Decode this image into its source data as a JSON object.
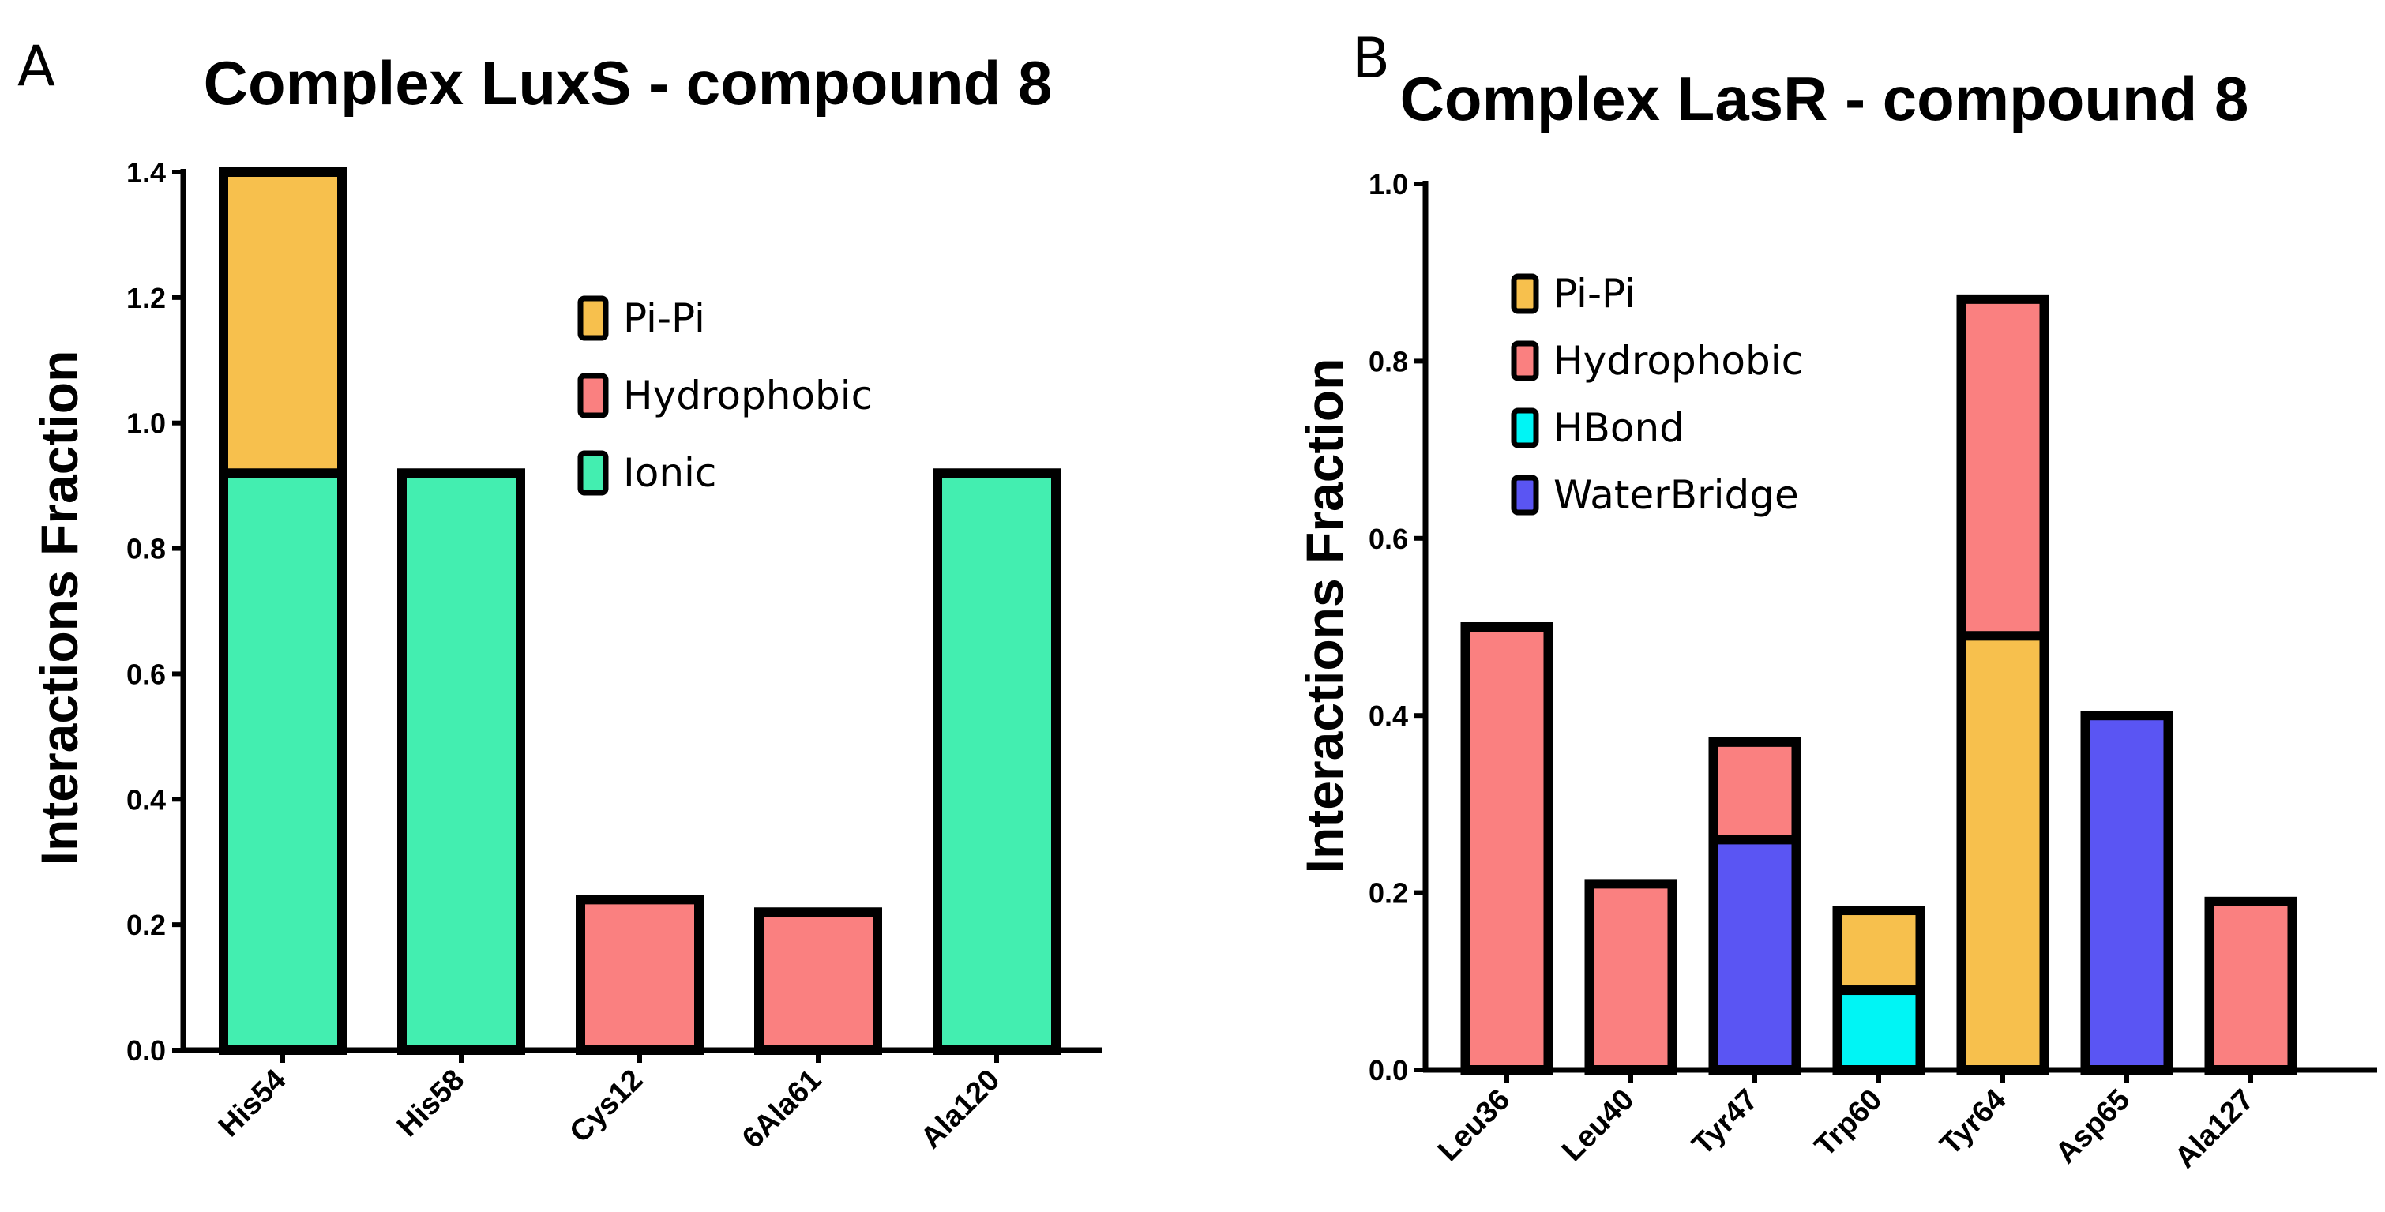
{
  "colors": {
    "Pi-Pi": "#f7c04d",
    "Hydrophobic": "#fa8080",
    "Ionic": "#43eeb0",
    "HBond": "#00f5f5",
    "WaterBridge": "#5a55f3"
  },
  "chart_data": [
    {
      "panel": "A",
      "type": "bar",
      "stacked": true,
      "title": "Complex LuxS - compound 8",
      "xlabel": "",
      "ylabel": "Interactions Fraction",
      "ylim": [
        0,
        1.4
      ],
      "yticks": [
        "0.0",
        "0.2",
        "0.4",
        "0.6",
        "0.8",
        "1.0",
        "1.2",
        "1.4"
      ],
      "categories": [
        "His54",
        "His58",
        "Cys12",
        "6Ala61",
        "Ala120"
      ],
      "legend": [
        "Pi-Pi",
        "Hydrophobic",
        "Ionic"
      ],
      "legend_position": "top-right",
      "series": [
        {
          "name": "Ionic",
          "values": [
            0.92,
            0.92,
            0,
            0,
            0.92
          ]
        },
        {
          "name": "Hydrophobic",
          "values": [
            0,
            0,
            0.24,
            0.22,
            0
          ]
        },
        {
          "name": "Pi-Pi",
          "values": [
            0.48,
            0,
            0,
            0,
            0
          ]
        }
      ]
    },
    {
      "panel": "B",
      "type": "bar",
      "stacked": true,
      "title": "Complex LasR - compound 8",
      "xlabel": "",
      "ylabel": "Interactions Fraction",
      "ylim": [
        0,
        1.0
      ],
      "yticks": [
        "0.0",
        "0.2",
        "0.4",
        "0.6",
        "0.8",
        "1.0"
      ],
      "categories": [
        "Leu36",
        "Leu40",
        "Tyr47",
        "Trp60",
        "Tyr64",
        "Asp65",
        "Ala127"
      ],
      "legend": [
        "Pi-Pi",
        "Hydrophobic",
        "HBond",
        "WaterBridge"
      ],
      "legend_position": "top-left",
      "series": [
        {
          "name": "HBond",
          "values": [
            0,
            0,
            0,
            0.09,
            0,
            0,
            0
          ]
        },
        {
          "name": "WaterBridge",
          "values": [
            0,
            0,
            0.26,
            0,
            0,
            0.4,
            0
          ]
        },
        {
          "name": "Pi-Pi",
          "values": [
            0,
            0,
            0,
            0.09,
            0.49,
            0,
            0
          ]
        },
        {
          "name": "Hydrophobic",
          "values": [
            0.5,
            0.21,
            0.11,
            0,
            0.38,
            0,
            0.19
          ]
        }
      ]
    }
  ]
}
